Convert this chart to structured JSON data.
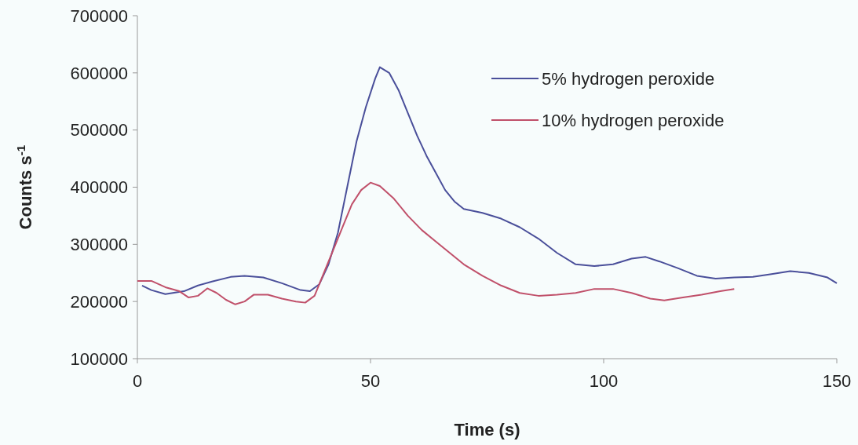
{
  "chart_data": {
    "type": "line",
    "xlabel": "Time (s)",
    "ylabel": "Counts s$^{-1}$",
    "xlim": [
      0,
      150
    ],
    "xticks": [
      0,
      50,
      100,
      150
    ],
    "ylim": [
      100000,
      700000
    ],
    "yticks": [
      100000,
      200000,
      300000,
      400000,
      500000,
      600000,
      700000
    ],
    "grid": false,
    "legend": "top right",
    "marker": "none",
    "line_style": "solid",
    "series": [
      {
        "name": "5% hydrogen peroxide",
        "color": "#4a4f9a",
        "x": [
          1,
          3,
          6,
          10,
          13,
          16,
          20,
          23,
          27,
          31,
          35,
          37,
          39,
          41,
          43,
          45,
          47,
          49,
          51,
          52,
          54,
          56,
          58,
          60,
          62,
          64,
          66,
          68,
          70,
          74,
          78,
          82,
          86,
          90,
          94,
          98,
          102,
          106,
          109,
          112,
          116,
          120,
          124,
          128,
          132,
          136,
          140,
          144,
          148,
          150
        ],
        "values": [
          228000,
          220000,
          213000,
          218000,
          228000,
          235000,
          243000,
          245000,
          242000,
          232000,
          220000,
          218000,
          230000,
          265000,
          320000,
          400000,
          480000,
          540000,
          590000,
          610000,
          600000,
          570000,
          530000,
          490000,
          455000,
          425000,
          395000,
          375000,
          362000,
          355000,
          345000,
          330000,
          310000,
          285000,
          265000,
          262000,
          265000,
          275000,
          278000,
          270000,
          258000,
          245000,
          240000,
          242000,
          243000,
          248000,
          253000,
          250000,
          242000,
          232000
        ]
      },
      {
        "name": "10% hydrogen peroxide",
        "color": "#c0506a",
        "x": [
          0,
          3,
          6,
          9,
          11,
          13,
          15,
          17,
          19,
          21,
          23,
          25,
          28,
          31,
          34,
          36,
          38,
          40,
          42,
          44,
          46,
          48,
          50,
          52,
          55,
          58,
          61,
          64,
          67,
          70,
          74,
          78,
          82,
          86,
          90,
          94,
          98,
          102,
          106,
          110,
          113,
          117,
          121,
          125,
          128
        ],
        "values": [
          236000,
          236000,
          225000,
          218000,
          207000,
          210000,
          223000,
          215000,
          203000,
          195000,
          200000,
          212000,
          212000,
          205000,
          200000,
          198000,
          210000,
          250000,
          290000,
          330000,
          370000,
          395000,
          408000,
          402000,
          380000,
          350000,
          325000,
          305000,
          285000,
          265000,
          245000,
          228000,
          215000,
          210000,
          212000,
          215000,
          222000,
          222000,
          215000,
          205000,
          202000,
          207000,
          212000,
          218000,
          222000
        ]
      }
    ]
  }
}
